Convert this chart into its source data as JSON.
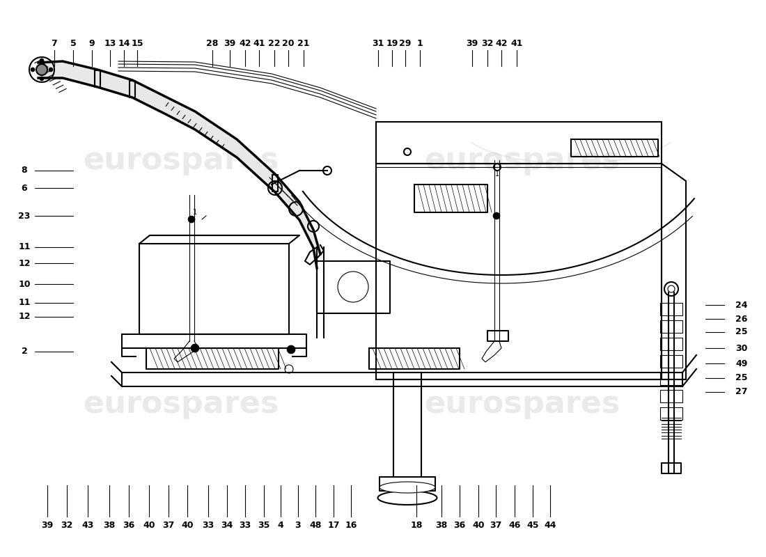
{
  "bg_color": "#ffffff",
  "line_color": "#000000",
  "lw_thick": 2.5,
  "lw_med": 1.5,
  "lw_thin": 0.8,
  "label_fontsize": 9,
  "watermark": "eurospares",
  "top_labels_left": [
    [
      "7",
      78
    ],
    [
      "5",
      105
    ],
    [
      "9",
      132
    ],
    [
      "13",
      158
    ],
    [
      "14",
      178
    ],
    [
      "15",
      197
    ]
  ],
  "top_labels_c1": [
    [
      "28",
      305
    ],
    [
      "39",
      330
    ],
    [
      "42",
      352
    ],
    [
      "41",
      372
    ],
    [
      "22",
      394
    ],
    [
      "20",
      414
    ],
    [
      "21",
      436
    ]
  ],
  "top_labels_c2": [
    [
      "31",
      543
    ],
    [
      "19",
      563
    ],
    [
      "29",
      582
    ],
    [
      "1",
      603
    ]
  ],
  "top_labels_r": [
    [
      "39",
      678
    ],
    [
      "32",
      700
    ],
    [
      "42",
      720
    ],
    [
      "41",
      742
    ]
  ],
  "left_labels": [
    [
      "8",
      245
    ],
    [
      "6",
      270
    ],
    [
      "23",
      310
    ],
    [
      "11",
      355
    ],
    [
      "12",
      378
    ],
    [
      "10",
      408
    ],
    [
      "11",
      435
    ],
    [
      "12",
      455
    ],
    [
      "2",
      505
    ]
  ],
  "right_labels": [
    [
      "24",
      438
    ],
    [
      "26",
      458
    ],
    [
      "25",
      477
    ],
    [
      "30",
      500
    ],
    [
      "49",
      522
    ],
    [
      "25",
      543
    ],
    [
      "27",
      563
    ]
  ],
  "bottom_labels": [
    [
      "39",
      68
    ],
    [
      "32",
      96
    ],
    [
      "43",
      126
    ],
    [
      "38",
      157
    ],
    [
      "36",
      185
    ],
    [
      "40",
      214
    ],
    [
      "37",
      242
    ],
    [
      "40",
      269
    ],
    [
      "33",
      299
    ],
    [
      "34",
      326
    ],
    [
      "33",
      352
    ],
    [
      "35",
      379
    ],
    [
      "4",
      403
    ],
    [
      "3",
      428
    ],
    [
      "48",
      453
    ],
    [
      "17",
      479
    ],
    [
      "16",
      504
    ],
    [
      "18",
      598
    ],
    [
      "38",
      634
    ],
    [
      "36",
      660
    ],
    [
      "40",
      687
    ],
    [
      "37",
      712
    ],
    [
      "46",
      739
    ],
    [
      "45",
      765
    ],
    [
      "44",
      790
    ]
  ]
}
